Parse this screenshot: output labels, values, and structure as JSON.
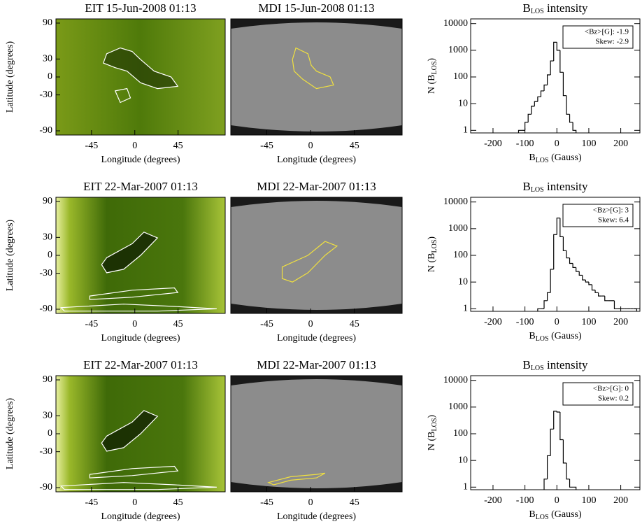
{
  "chart_data": [
    {
      "type": "image",
      "title": "EIT 15-Jun-2008 01:13",
      "xlabel": "Longitude (degrees)",
      "ylabel": "Latitude (degrees)",
      "xlim": [
        -82,
        94
      ],
      "ylim": [
        -97,
        97
      ],
      "xticks": [
        -45,
        0,
        45
      ],
      "yticks": [
        90,
        30,
        0,
        -30,
        -90
      ]
    },
    {
      "type": "image",
      "title": "MDI 15-Jun-2008 01:13",
      "xlabel": "Longitude (degrees)",
      "xlim": [
        -82,
        94
      ],
      "ylim": [
        -97,
        97
      ],
      "xticks": [
        -45,
        0,
        45
      ]
    },
    {
      "type": "histogram",
      "title": [
        "B",
        "LOS",
        " intensity"
      ],
      "xlabel": [
        "B",
        "LOS",
        " (Gauss)"
      ],
      "ylabel": [
        "N (B",
        "LOS",
        ")"
      ],
      "annotation": [
        "<Bz>[G]: -1.9",
        "Skew: -2.9"
      ],
      "log_y": true,
      "xlim": [
        -270,
        260
      ],
      "ylim": [
        0.8,
        15000
      ],
      "xticks": [
        -200,
        -100,
        0,
        100,
        200
      ],
      "yticks": [
        1,
        10,
        100,
        1000,
        10000
      ],
      "bins": [
        -120,
        -110,
        -100,
        -90,
        -80,
        -70,
        -60,
        -50,
        -40,
        -30,
        -20,
        -10,
        0,
        10,
        20,
        30,
        40,
        50,
        60
      ],
      "counts": [
        1,
        1,
        2,
        4,
        8,
        12,
        18,
        30,
        50,
        120,
        400,
        2000,
        1000,
        150,
        20,
        4,
        2,
        1
      ]
    },
    {
      "type": "image",
      "title": "EIT 22-Mar-2007 01:13",
      "xlabel": "Longitude (degrees)",
      "ylabel": "Latitude (degrees)",
      "xlim": [
        -82,
        94
      ],
      "ylim": [
        -97,
        97
      ],
      "xticks": [
        -45,
        0,
        45
      ],
      "yticks": [
        90,
        30,
        0,
        -30,
        -90
      ]
    },
    {
      "type": "image",
      "title": "MDI 22-Mar-2007 01:13",
      "xlabel": "Longitude (degrees)",
      "xlim": [
        -82,
        94
      ],
      "ylim": [
        -97,
        97
      ],
      "xticks": [
        -45,
        0,
        45
      ]
    },
    {
      "type": "histogram",
      "title": [
        "B",
        "LOS",
        " intensity"
      ],
      "xlabel": [
        "B",
        "LOS",
        " (Gauss)"
      ],
      "ylabel": [
        "N (B",
        "LOS",
        ")"
      ],
      "annotation": [
        "<Bz>[G]: 3",
        "Skew: 6.4"
      ],
      "log_y": true,
      "xlim": [
        -270,
        260
      ],
      "ylim": [
        0.8,
        15000
      ],
      "xticks": [
        -200,
        -100,
        0,
        100,
        200
      ],
      "yticks": [
        1,
        10,
        100,
        1000,
        10000
      ],
      "bins": [
        -60,
        -50,
        -40,
        -30,
        -20,
        -10,
        0,
        10,
        20,
        30,
        40,
        50,
        60,
        70,
        80,
        90,
        100,
        110,
        120,
        130,
        140,
        150,
        160,
        170,
        180,
        190,
        200,
        210,
        220,
        230,
        240,
        250
      ],
      "counts": [
        1,
        1,
        2,
        4,
        30,
        600,
        2500,
        500,
        150,
        80,
        50,
        35,
        25,
        18,
        12,
        10,
        8,
        5,
        4,
        3,
        3,
        2,
        2,
        2,
        1,
        1,
        1,
        1,
        1,
        1,
        1
      ]
    },
    {
      "type": "image",
      "title": "EIT 22-Mar-2007 01:13",
      "xlabel": "Longitude (degrees)",
      "ylabel": "Latitude (degrees)",
      "xlim": [
        -82,
        94
      ],
      "ylim": [
        -97,
        97
      ],
      "xticks": [
        -45,
        0,
        45
      ],
      "yticks": [
        90,
        30,
        0,
        -30,
        -90
      ]
    },
    {
      "type": "image",
      "title": "MDI 22-Mar-2007 01:13",
      "xlabel": "Longitude (degrees)",
      "xlim": [
        -82,
        94
      ],
      "ylim": [
        -97,
        97
      ],
      "xticks": [
        -45,
        0,
        45
      ]
    },
    {
      "type": "histogram",
      "title": [
        "B",
        "LOS",
        " intensity"
      ],
      "xlabel": [
        "B",
        "LOS",
        " (Gauss)"
      ],
      "ylabel": [
        "N (B",
        "LOS",
        ")"
      ],
      "annotation": [
        "<Bz>[G]: 0",
        "Skew: 0.2"
      ],
      "log_y": true,
      "xlim": [
        -270,
        260
      ],
      "ylim": [
        0.8,
        15000
      ],
      "xticks": [
        -200,
        -100,
        0,
        100,
        200
      ],
      "yticks": [
        1,
        10,
        100,
        1000,
        10000
      ],
      "bins": [
        -40,
        -30,
        -20,
        -10,
        0,
        10,
        20,
        30,
        40,
        50,
        60
      ],
      "counts": [
        2,
        15,
        150,
        700,
        650,
        60,
        8,
        2,
        1,
        1
      ]
    }
  ]
}
